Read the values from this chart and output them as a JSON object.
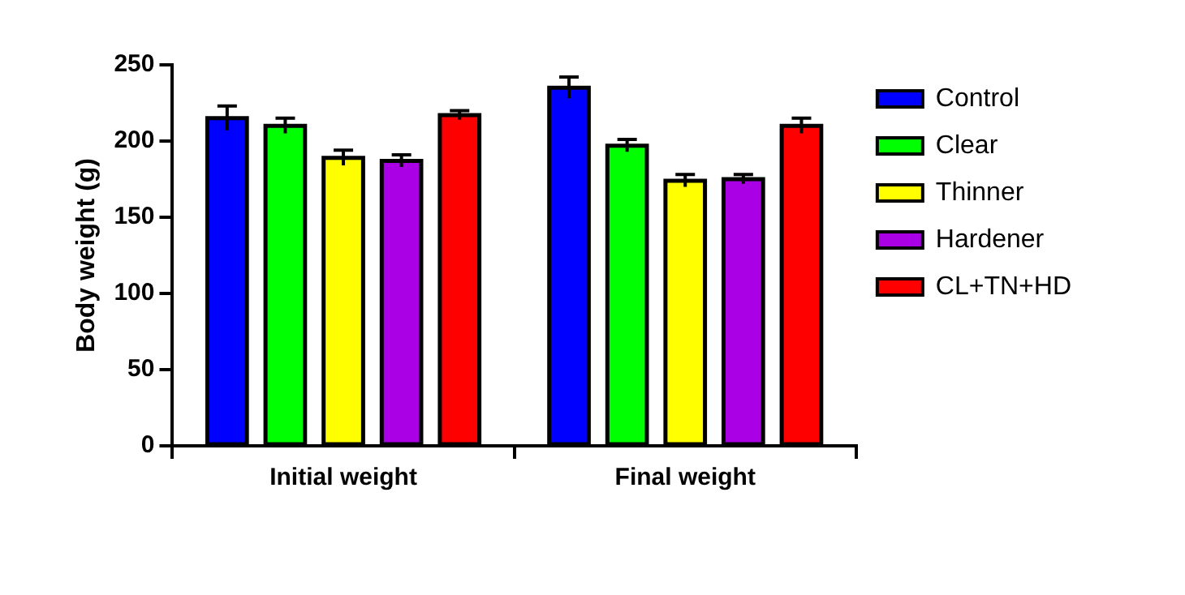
{
  "chart_data": {
    "type": "bar",
    "ylabel": "Body weight (g)",
    "categories": [
      "Initial weight",
      "Final weight"
    ],
    "series": [
      {
        "name": "Control",
        "color": "#0000ff",
        "values": [
          215,
          235
        ],
        "errors": [
          8,
          7
        ]
      },
      {
        "name": "Clear",
        "color": "#00ff00",
        "values": [
          210,
          197
        ],
        "errors": [
          5,
          4
        ]
      },
      {
        "name": "Thinner",
        "color": "#ffff00",
        "values": [
          189,
          174
        ],
        "errors": [
          5,
          4
        ]
      },
      {
        "name": "Hardener",
        "color": "#aa00e6",
        "values": [
          187,
          175
        ],
        "errors": [
          4,
          3
        ]
      },
      {
        "name": "CL+TN+HD",
        "color": "#ff0000",
        "values": [
          217,
          210
        ],
        "errors": [
          3,
          5
        ]
      }
    ],
    "ylim": [
      0,
      250
    ],
    "yticks": [
      0,
      50,
      100,
      150,
      200,
      250
    ],
    "grid": false,
    "legend": "right"
  }
}
